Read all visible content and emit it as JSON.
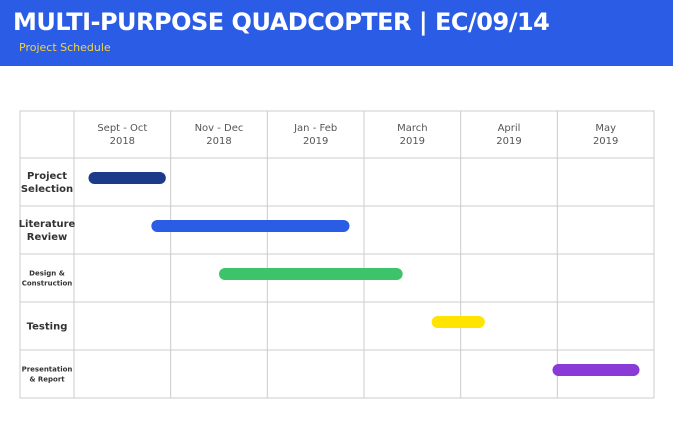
{
  "header": {
    "title": "MULTI-PURPOSE QUADCOPTER  |  EC/09/14",
    "subtitle": "Project Schedule"
  },
  "colors": {
    "header_background": "#2b5ce6",
    "title_text": "#ffffff",
    "subtitle_text": "#f5d34a",
    "grid_line": "#cccccc"
  },
  "chart_data": {
    "type": "gantt",
    "title": "",
    "columns": [
      {
        "lines": [
          "Sept - Oct",
          "2018"
        ]
      },
      {
        "lines": [
          "Nov - Dec",
          "2018"
        ]
      },
      {
        "lines": [
          "Jan - Feb",
          "2019"
        ]
      },
      {
        "lines": [
          "March",
          "2019"
        ]
      },
      {
        "lines": [
          "April",
          "2019"
        ]
      },
      {
        "lines": [
          "May",
          "2019"
        ]
      }
    ],
    "tasks": [
      {
        "label": [
          "Project",
          "Selection"
        ],
        "start": 0.15,
        "end": 0.95,
        "color": "#1c3a8a",
        "small": false
      },
      {
        "label": [
          "Literature",
          "Review"
        ],
        "start": 0.8,
        "end": 2.85,
        "color": "#2b5ce6",
        "small": false
      },
      {
        "label": [
          "Design &",
          "Construction"
        ],
        "start": 1.5,
        "end": 3.4,
        "color": "#3dc46a",
        "small": true
      },
      {
        "label": [
          "Testing"
        ],
        "start": 3.7,
        "end": 4.25,
        "color": "#ffe400",
        "small": false
      },
      {
        "label": [
          "Presentation",
          "& Report"
        ],
        "start": 4.95,
        "end": 5.85,
        "color": "#8a3ad6",
        "small": true
      }
    ],
    "grid": true
  }
}
